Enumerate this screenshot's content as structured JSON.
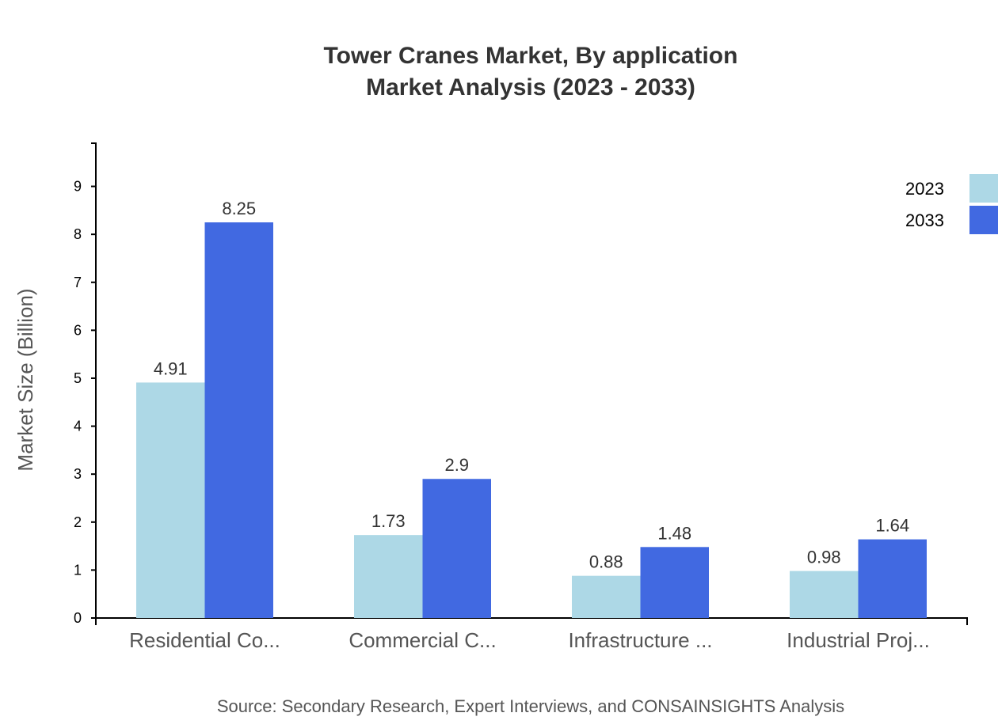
{
  "chart_data": {
    "type": "bar",
    "title": "Tower Cranes Market, By application",
    "subtitle": "Market Analysis (2023 - 2033)",
    "xlabel": "",
    "ylabel": "Market Size (Billion)",
    "ylim": [
      0,
      9.9
    ],
    "yticks": [
      0,
      1,
      2,
      3,
      4,
      5,
      6,
      7,
      8,
      9
    ],
    "grid": false,
    "legend_position": "top-right",
    "categories": [
      "Residential Co...",
      "Commercial C...",
      "Infrastructure ...",
      "Industrial Proj..."
    ],
    "series": [
      {
        "name": "2023",
        "color": "#add8e6",
        "values": [
          4.91,
          1.73,
          0.88,
          0.98
        ]
      },
      {
        "name": "2033",
        "color": "#4169e1",
        "values": [
          8.25,
          2.9,
          1.48,
          1.64
        ]
      }
    ],
    "source": "Source: Secondary Research, Expert Interviews, and CONSAINSIGHTS Analysis"
  }
}
